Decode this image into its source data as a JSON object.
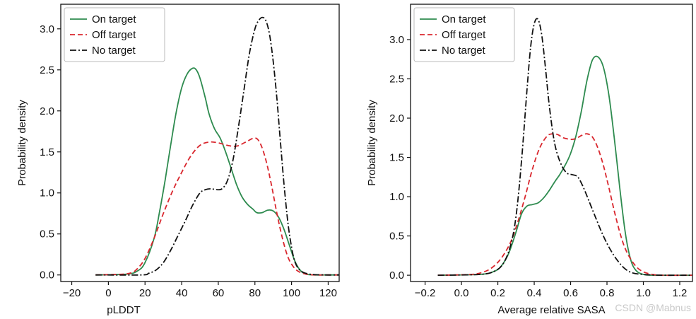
{
  "chart_data": [
    {
      "type": "line",
      "xlabel": "pLDDT",
      "ylabel": "Probability density",
      "xlim": [
        -26,
        126
      ],
      "ylim": [
        -0.08,
        3.3
      ],
      "xticks": [
        -20,
        0,
        20,
        40,
        60,
        80,
        100,
        120
      ],
      "xtick_labels": [
        "−20",
        "0",
        "20",
        "40",
        "60",
        "80",
        "100",
        "120"
      ],
      "yticks": [
        0.0,
        0.5,
        1.0,
        1.5,
        2.0,
        2.5,
        3.0
      ],
      "ytick_labels": [
        "0.0",
        "0.5",
        "1.0",
        "1.5",
        "2.0",
        "2.5",
        "3.0"
      ],
      "legend_position": "top-left",
      "series": [
        {
          "name": "On target",
          "color": "#2e8b4f",
          "style": "solid",
          "x": [
            -7,
            10,
            16,
            20,
            25,
            28,
            31,
            34,
            37,
            40,
            43,
            46,
            48,
            50,
            53,
            55,
            58,
            61,
            64,
            67,
            70,
            73,
            76,
            79,
            81,
            84,
            87,
            90,
            93,
            96,
            99,
            102,
            105,
            108,
            112,
            118,
            126
          ],
          "y": [
            0.0,
            0.01,
            0.05,
            0.15,
            0.45,
            0.78,
            1.16,
            1.58,
            1.98,
            2.28,
            2.45,
            2.52,
            2.5,
            2.4,
            2.15,
            1.96,
            1.78,
            1.67,
            1.5,
            1.3,
            1.1,
            0.95,
            0.86,
            0.8,
            0.76,
            0.76,
            0.79,
            0.78,
            0.7,
            0.55,
            0.35,
            0.16,
            0.05,
            0.01,
            0.0,
            0.0,
            0.0
          ]
        },
        {
          "name": "Off target",
          "color": "#d9272e",
          "style": "dashed",
          "x": [
            -7,
            8,
            13,
            16,
            20,
            25,
            30,
            35,
            40,
            45,
            50,
            55,
            60,
            65,
            70,
            75,
            80,
            83,
            86,
            89,
            92,
            95,
            98,
            101,
            104,
            108,
            113,
            120,
            126
          ],
          "y": [
            0.0,
            0.01,
            0.03,
            0.08,
            0.2,
            0.45,
            0.75,
            1.02,
            1.25,
            1.45,
            1.58,
            1.62,
            1.61,
            1.58,
            1.57,
            1.62,
            1.67,
            1.6,
            1.4,
            1.1,
            0.75,
            0.45,
            0.22,
            0.1,
            0.04,
            0.01,
            0.0,
            0.0,
            0.0
          ]
        },
        {
          "name": "No target",
          "color": "#111111",
          "style": "dashdot",
          "x": [
            -7,
            18,
            22,
            26,
            30,
            34,
            38,
            42,
            46,
            50,
            53,
            56,
            59,
            62,
            65,
            68,
            71,
            74,
            77,
            80,
            82,
            84,
            86,
            88,
            90,
            92,
            94,
            96,
            98,
            100,
            102,
            105,
            110,
            118,
            126
          ],
          "y": [
            0.0,
            0.0,
            0.02,
            0.06,
            0.15,
            0.3,
            0.48,
            0.66,
            0.85,
            1.0,
            1.04,
            1.05,
            1.04,
            1.05,
            1.15,
            1.4,
            1.8,
            2.25,
            2.7,
            3.0,
            3.1,
            3.14,
            3.1,
            2.93,
            2.6,
            2.15,
            1.6,
            1.08,
            0.64,
            0.34,
            0.15,
            0.05,
            0.01,
            0.0,
            0.0
          ]
        }
      ]
    },
    {
      "type": "line",
      "xlabel": "Average relative SASA",
      "ylabel": "Probability density",
      "xlim": [
        -0.28,
        1.27
      ],
      "ylim": [
        -0.08,
        3.45
      ],
      "xticks": [
        -0.2,
        0.0,
        0.2,
        0.4,
        0.6,
        0.8,
        1.0,
        1.2
      ],
      "xtick_labels": [
        "−0.2",
        "0.0",
        "0.2",
        "0.4",
        "0.6",
        "0.8",
        "1.0",
        "1.2"
      ],
      "yticks": [
        0.0,
        0.5,
        1.0,
        1.5,
        2.0,
        2.5,
        3.0
      ],
      "ytick_labels": [
        "0.0",
        "0.5",
        "1.0",
        "1.5",
        "2.0",
        "2.5",
        "3.0"
      ],
      "legend_position": "top-left",
      "series": [
        {
          "name": "On target",
          "color": "#2e8b4f",
          "style": "solid",
          "x": [
            -0.13,
            0.1,
            0.18,
            0.22,
            0.26,
            0.3,
            0.33,
            0.36,
            0.39,
            0.42,
            0.45,
            0.48,
            0.51,
            0.54,
            0.57,
            0.6,
            0.63,
            0.66,
            0.69,
            0.72,
            0.75,
            0.78,
            0.81,
            0.84,
            0.87,
            0.9,
            0.93,
            0.96,
            1.0,
            1.05,
            1.12,
            1.27
          ],
          "y": [
            0.0,
            0.01,
            0.05,
            0.12,
            0.28,
            0.55,
            0.78,
            0.88,
            0.9,
            0.92,
            0.98,
            1.07,
            1.18,
            1.28,
            1.4,
            1.55,
            1.78,
            2.1,
            2.48,
            2.74,
            2.78,
            2.65,
            2.3,
            1.75,
            1.12,
            0.55,
            0.2,
            0.06,
            0.01,
            0.0,
            0.0,
            0.0
          ]
        },
        {
          "name": "Off target",
          "color": "#d9272e",
          "style": "dashed",
          "x": [
            -0.13,
            0.05,
            0.12,
            0.17,
            0.22,
            0.27,
            0.31,
            0.35,
            0.39,
            0.43,
            0.47,
            0.5,
            0.53,
            0.56,
            0.6,
            0.63,
            0.66,
            0.69,
            0.72,
            0.75,
            0.78,
            0.81,
            0.84,
            0.87,
            0.9,
            0.94,
            0.98,
            1.03,
            1.1,
            1.27
          ],
          "y": [
            0.0,
            0.01,
            0.04,
            0.1,
            0.22,
            0.42,
            0.68,
            1.0,
            1.35,
            1.62,
            1.77,
            1.8,
            1.79,
            1.75,
            1.73,
            1.74,
            1.78,
            1.8,
            1.76,
            1.62,
            1.4,
            1.12,
            0.82,
            0.55,
            0.34,
            0.17,
            0.07,
            0.02,
            0.0,
            0.0
          ]
        },
        {
          "name": "No target",
          "color": "#111111",
          "style": "dashdot",
          "x": [
            -0.13,
            0.1,
            0.18,
            0.23,
            0.27,
            0.3,
            0.33,
            0.36,
            0.38,
            0.4,
            0.42,
            0.44,
            0.46,
            0.48,
            0.5,
            0.52,
            0.55,
            0.58,
            0.61,
            0.64,
            0.67,
            0.7,
            0.74,
            0.78,
            0.82,
            0.86,
            0.9,
            0.94,
            1.0,
            1.1,
            1.27
          ],
          "y": [
            0.0,
            0.01,
            0.05,
            0.15,
            0.38,
            0.75,
            1.45,
            2.35,
            2.9,
            3.2,
            3.26,
            3.08,
            2.68,
            2.22,
            1.85,
            1.6,
            1.4,
            1.3,
            1.28,
            1.25,
            1.12,
            0.95,
            0.72,
            0.5,
            0.32,
            0.18,
            0.08,
            0.03,
            0.01,
            0.0,
            0.0
          ]
        }
      ]
    }
  ],
  "watermark": "CSDN @Mabnus"
}
